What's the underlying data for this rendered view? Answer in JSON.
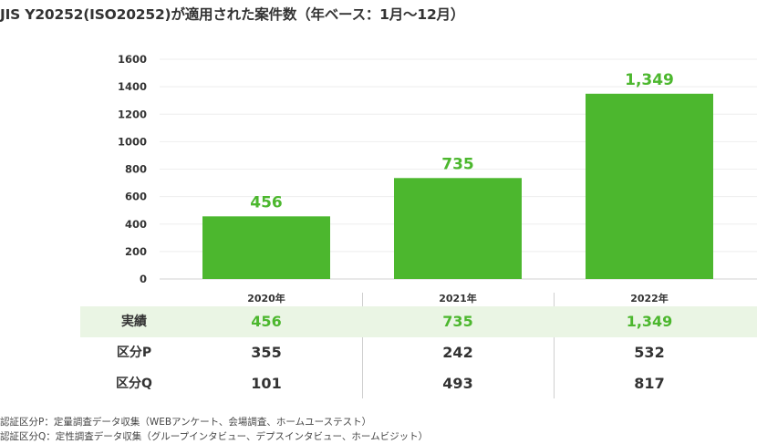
{
  "title": "JIS Y20252(ISO20252)が適用された案件数（年ベース：1月〜12月）",
  "chart_data": {
    "type": "bar",
    "categories": [
      "2020年",
      "2021年",
      "2022年"
    ],
    "values": [
      456,
      735,
      1349
    ],
    "value_labels": [
      "456",
      "735",
      "1,349"
    ],
    "ylim": [
      0,
      1600
    ],
    "yticks": [
      "0",
      "200",
      "400",
      "600",
      "800",
      "1000",
      "1200",
      "1400",
      "1600"
    ],
    "grid": true,
    "bar_color": "#4cb72e"
  },
  "table": {
    "rows": [
      {
        "label": "実績",
        "values": [
          "456",
          "735",
          "1,349"
        ],
        "highlight": true
      },
      {
        "label": "区分P",
        "values": [
          "355",
          "242",
          "532"
        ],
        "highlight": false
      },
      {
        "label": "区分Q",
        "values": [
          "101",
          "493",
          "817"
        ],
        "highlight": false
      }
    ]
  },
  "notes": [
    "認証区分P：定量調査データ収集（WEBアンケート、会場調査、ホームユーステスト）",
    "認証区分Q：定性調査データ収集（グループインタビュー、デプスインタビュー、ホームビジット）"
  ],
  "colors": {
    "accent": "#4cb72e",
    "highlight_row": "#eaf5e4",
    "text": "#333333"
  }
}
